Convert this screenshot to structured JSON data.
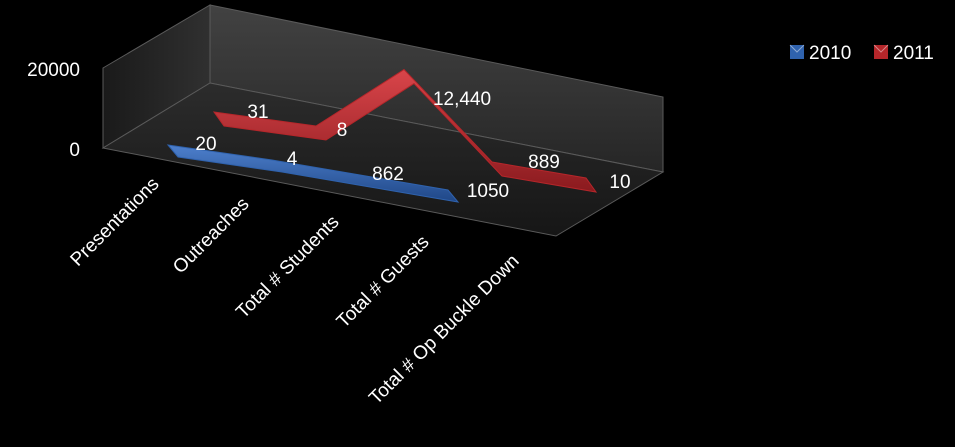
{
  "chart_data": {
    "type": "area",
    "style": "3d-ribbon",
    "categories": [
      "Presentations",
      "Outreaches",
      "Total # Students",
      "Total # Guests",
      "Total # Op Buckle Down"
    ],
    "series": [
      {
        "name": "2010",
        "values": [
          20,
          4,
          862,
          1050,
          null
        ],
        "labels": [
          "20",
          "4",
          "862",
          "1050",
          ""
        ],
        "color": "#2f62ad"
      },
      {
        "name": "2011",
        "values": [
          31,
          8,
          12440,
          889,
          10
        ],
        "labels": [
          "31",
          "8",
          "12,440",
          "889",
          "10"
        ],
        "color": "#b5262a"
      }
    ],
    "ytick_labels": [
      "0",
      "20000"
    ],
    "ylim": [
      0,
      20000
    ],
    "grid": false,
    "legend_position": "top-right",
    "background": "#000000",
    "text_color": "#ffffff"
  }
}
